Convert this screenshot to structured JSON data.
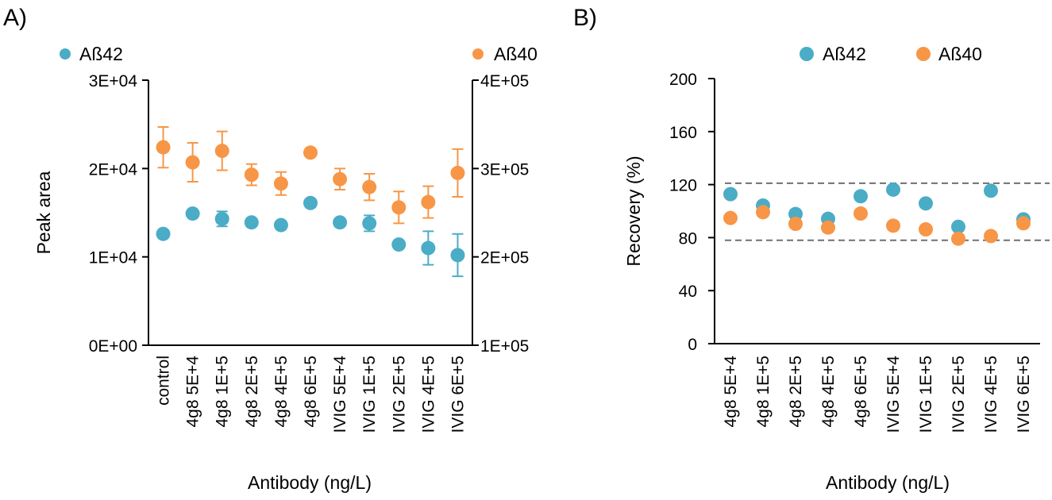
{
  "colors": {
    "abeta42": "#4BACC6",
    "abeta40": "#F79646",
    "reference_line": "#707070"
  },
  "chart_data": [
    {
      "panel_label": "A)",
      "type": "scatter",
      "categories": [
        "control",
        "4g8 5E+4",
        "4g8 1E+5",
        "4g8 2E+5",
        "4g8 4E+5",
        "4g8 6E+5",
        "IVIG 5E+4",
        "IVIG 1E+5",
        "IVIG 2E+5",
        "IVIG 4E+5",
        "IVIG 6E+5"
      ],
      "xlabel": "Antibody (ng/L)",
      "ylabel": "Peak area",
      "y_left": {
        "lim": [
          0,
          30000
        ],
        "ticks": [
          "0E+00",
          "1E+04",
          "2E+04",
          "3E+04"
        ]
      },
      "y_right": {
        "lim": [
          100000,
          400000
        ],
        "ticks": [
          "1E+05",
          "2E+05",
          "3E+05",
          "4E+05"
        ]
      },
      "grid": false,
      "legend": [
        "top-left: Aß42",
        "top-right: Aß40"
      ],
      "series": [
        {
          "name": "Aß42",
          "axis": "left",
          "values": [
            12600,
            14900,
            14300,
            13900,
            13600,
            16100,
            13900,
            13800,
            11400,
            11000,
            10200
          ],
          "errors": [
            0,
            200,
            850,
            300,
            300,
            0,
            300,
            900,
            300,
            1900,
            2400
          ]
        },
        {
          "name": "Aß40",
          "axis": "right",
          "values": [
            324000,
            307000,
            320000,
            293000,
            283000,
            318000,
            288000,
            279000,
            256000,
            262000,
            295000
          ],
          "errors": [
            23000,
            22000,
            22000,
            12000,
            13000,
            2000,
            12000,
            15000,
            18000,
            18000,
            27000
          ]
        }
      ]
    },
    {
      "panel_label": "B)",
      "type": "scatter",
      "categories": [
        "4g8 5E+4",
        "4g8 1E+5",
        "4g8 2E+5",
        "4g8 4E+5",
        "4g8 6E+5",
        "IVIG 5E+4",
        "IVIG 1E+5",
        "IVIG 2E+5",
        "IVIG 4E+5",
        "IVIG 6E+5"
      ],
      "xlabel": "Antibody (ng/L)",
      "ylabel": "Recovery (%)",
      "ylim": [
        0,
        200
      ],
      "yticks": [
        "0",
        "40",
        "80",
        "120",
        "160",
        "200"
      ],
      "grid": false,
      "legend": "top",
      "reference_lines": [
        121,
        78
      ],
      "series": [
        {
          "name": "Aß42",
          "values": [
            112.8,
            104.2,
            97.8,
            94.2,
            111.2,
            116.2,
            105.8,
            88.2,
            115.4,
            93.8
          ]
        },
        {
          "name": "Aß40",
          "values": [
            94.8,
            99.2,
            90.4,
            87.6,
            98.2,
            89.0,
            86.2,
            79.2,
            81.2,
            90.8
          ]
        }
      ]
    }
  ]
}
